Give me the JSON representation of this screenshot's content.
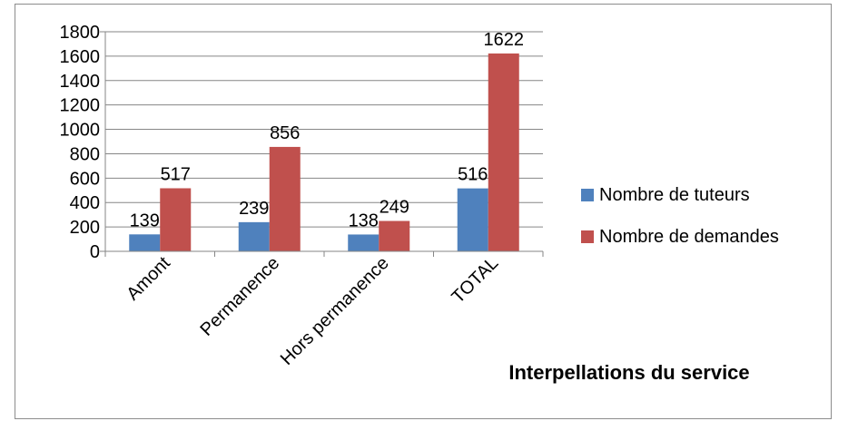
{
  "chart_data": {
    "type": "bar",
    "title": "Interpellations du service",
    "categories": [
      "Amont",
      "Permanence",
      "Hors permanence",
      "TOTAL"
    ],
    "series": [
      {
        "name": "Nombre de tuteurs",
        "color": "#4f81bd",
        "values": [
          139,
          239,
          138,
          516
        ]
      },
      {
        "name": "Nombre de demandes",
        "color": "#c0504d",
        "values": [
          517,
          856,
          249,
          1622
        ]
      }
    ],
    "yticks": [
      "0",
      "200",
      "400",
      "600",
      "800",
      "1000",
      "1200",
      "1400",
      "1600",
      "1800"
    ],
    "ylim": [
      0,
      1800
    ],
    "grid": true,
    "legend_position": "right"
  }
}
